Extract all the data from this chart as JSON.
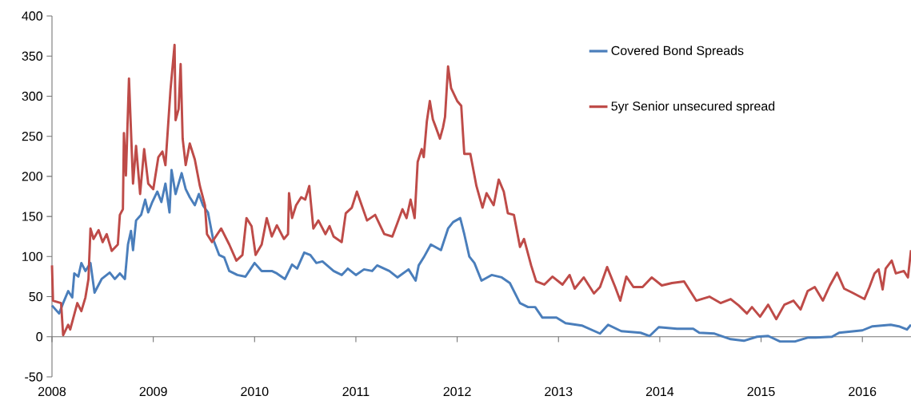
{
  "chart_data": {
    "type": "line",
    "xlim": [
      2008,
      2016.48
    ],
    "xticks": [
      2008,
      2009,
      2010,
      2011,
      2012,
      2013,
      2014,
      2015,
      2016
    ],
    "ylim": [
      -50,
      400
    ],
    "yticks": [
      -50,
      0,
      50,
      100,
      150,
      200,
      250,
      300,
      350,
      400
    ],
    "legend": "top right",
    "marker": "none",
    "line_style": "solid",
    "series": [
      {
        "name": "Covered Bond Spreads",
        "color": "#4a7ebb",
        "x": [
          2008.0,
          2008.07,
          2008.12,
          2008.16,
          2008.2,
          2008.22,
          2008.26,
          2008.29,
          2008.33,
          2008.38,
          2008.42,
          2008.49,
          2008.57,
          2008.62,
          2008.67,
          2008.72,
          2008.75,
          2008.78,
          2008.8,
          2008.83,
          2008.88,
          2008.92,
          2008.95,
          2008.99,
          2009.04,
          2009.08,
          2009.12,
          2009.16,
          2009.18,
          2009.22,
          2009.28,
          2009.32,
          2009.36,
          2009.41,
          2009.45,
          2009.49,
          2009.54,
          2009.59,
          2009.65,
          2009.7,
          2009.75,
          2009.83,
          2009.91,
          2010.0,
          2010.07,
          2010.17,
          2010.22,
          2010.3,
          2010.37,
          2010.42,
          2010.49,
          2010.55,
          2010.61,
          2010.67,
          2010.78,
          2010.86,
          2010.92,
          2011.0,
          2011.08,
          2011.16,
          2011.21,
          2011.33,
          2011.41,
          2011.52,
          2011.59,
          2011.62,
          2011.67,
          2011.74,
          2011.84,
          2011.91,
          2011.96,
          2012.03,
          2012.07,
          2012.12,
          2012.17,
          2012.24,
          2012.34,
          2012.44,
          2012.52,
          2012.62,
          2012.7,
          2012.77,
          2012.84,
          2012.98,
          2013.07,
          2013.23,
          2013.41,
          2013.49,
          2013.62,
          2013.81,
          2013.9,
          2013.99,
          2014.17,
          2014.33,
          2014.39,
          2014.54,
          2014.7,
          2014.83,
          2014.96,
          2015.07,
          2015.19,
          2015.33,
          2015.46,
          2015.54,
          2015.7,
          2015.77,
          2016.0,
          2016.1,
          2016.28,
          2016.36,
          2016.44,
          2016.48
        ],
        "values": [
          39,
          29,
          45,
          57,
          49,
          79,
          75,
          92,
          82,
          92,
          55,
          72,
          80,
          72,
          79,
          72,
          115,
          132,
          108,
          145,
          152,
          171,
          155,
          168,
          181,
          168,
          191,
          155,
          208,
          178,
          204,
          184,
          174,
          164,
          178,
          164,
          155,
          122,
          102,
          99,
          82,
          77,
          75,
          92,
          82,
          82,
          79,
          72,
          90,
          85,
          105,
          102,
          92,
          94,
          82,
          77,
          85,
          77,
          84,
          82,
          89,
          82,
          74,
          84,
          70,
          89,
          99,
          115,
          108,
          135,
          143,
          148,
          128,
          100,
          92,
          70,
          77,
          74,
          67,
          42,
          37,
          37,
          24,
          24,
          17,
          14,
          4,
          15,
          7,
          5,
          1,
          12,
          10,
          10,
          5,
          4,
          -3,
          -5,
          0,
          1,
          -6,
          -6,
          -1,
          -1,
          0,
          5,
          8,
          13,
          15,
          13,
          9,
          15
        ]
      },
      {
        "name": "5yr Senior unsecured spread",
        "color": "#be4b48",
        "x": [
          2008.0,
          2008.01,
          2008.09,
          2008.11,
          2008.16,
          2008.18,
          2008.25,
          2008.29,
          2008.33,
          2008.36,
          2008.38,
          2008.41,
          2008.46,
          2008.5,
          2008.54,
          2008.59,
          2008.65,
          2008.67,
          2008.7,
          2008.71,
          2008.73,
          2008.76,
          2008.8,
          2008.83,
          2008.87,
          2008.91,
          2008.95,
          2009.0,
          2009.05,
          2009.09,
          2009.12,
          2009.17,
          2009.21,
          2009.22,
          2009.25,
          2009.27,
          2009.29,
          2009.32,
          2009.36,
          2009.41,
          2009.46,
          2009.51,
          2009.53,
          2009.58,
          2009.67,
          2009.75,
          2009.82,
          2009.88,
          2009.92,
          2009.97,
          2010.01,
          2010.07,
          2010.12,
          2010.17,
          2010.22,
          2010.29,
          2010.33,
          2010.34,
          2010.37,
          2010.41,
          2010.46,
          2010.5,
          2010.54,
          2010.58,
          2010.63,
          2010.7,
          2010.74,
          2010.78,
          2010.86,
          2010.9,
          2010.96,
          2011.01,
          2011.11,
          2011.19,
          2011.28,
          2011.36,
          2011.41,
          2011.46,
          2011.5,
          2011.54,
          2011.58,
          2011.61,
          2011.65,
          2011.67,
          2011.7,
          2011.73,
          2011.76,
          2011.79,
          2011.83,
          2011.86,
          2011.88,
          2011.91,
          2011.94,
          2012.0,
          2012.04,
          2012.07,
          2012.13,
          2012.19,
          2012.25,
          2012.29,
          2012.36,
          2012.41,
          2012.46,
          2012.5,
          2012.56,
          2012.62,
          2012.66,
          2012.73,
          2012.78,
          2012.86,
          2012.94,
          2013.04,
          2013.11,
          2013.16,
          2013.25,
          2013.35,
          2013.41,
          2013.48,
          2013.56,
          2013.61,
          2013.67,
          2013.74,
          2013.83,
          2013.92,
          2014.02,
          2014.12,
          2014.24,
          2014.36,
          2014.49,
          2014.6,
          2014.7,
          2014.78,
          2014.86,
          2014.91,
          2014.99,
          2015.07,
          2015.15,
          2015.23,
          2015.32,
          2015.39,
          2015.46,
          2015.53,
          2015.61,
          2015.68,
          2015.75,
          2015.82,
          2015.9,
          2016.02,
          2016.07,
          2016.12,
          2016.16,
          2016.2,
          2016.23,
          2016.29,
          2016.33,
          2016.41,
          2016.45,
          2016.48
        ],
        "values": [
          89,
          45,
          42,
          2,
          15,
          9,
          42,
          32,
          49,
          72,
          135,
          122,
          133,
          118,
          128,
          107,
          115,
          152,
          159,
          254,
          201,
          322,
          191,
          238,
          178,
          234,
          191,
          184,
          224,
          231,
          214,
          308,
          364,
          270,
          284,
          340,
          247,
          214,
          241,
          221,
          188,
          164,
          128,
          118,
          135,
          115,
          95,
          102,
          148,
          138,
          102,
          115,
          148,
          125,
          139,
          122,
          128,
          179,
          148,
          164,
          174,
          171,
          188,
          135,
          145,
          128,
          138,
          125,
          118,
          154,
          161,
          181,
          145,
          152,
          128,
          125,
          142,
          159,
          148,
          171,
          148,
          218,
          234,
          224,
          268,
          294,
          271,
          261,
          247,
          261,
          274,
          337,
          310,
          294,
          288,
          228,
          228,
          188,
          161,
          179,
          164,
          196,
          181,
          154,
          152,
          112,
          122,
          89,
          69,
          65,
          75,
          65,
          77,
          60,
          74,
          54,
          62,
          87,
          62,
          45,
          75,
          62,
          62,
          74,
          64,
          67,
          69,
          45,
          50,
          42,
          47,
          39,
          29,
          37,
          25,
          40,
          22,
          40,
          45,
          34,
          57,
          62,
          45,
          64,
          80,
          60,
          55,
          47,
          62,
          79,
          84,
          59,
          85,
          95,
          79,
          82,
          74,
          108
        ]
      }
    ]
  }
}
